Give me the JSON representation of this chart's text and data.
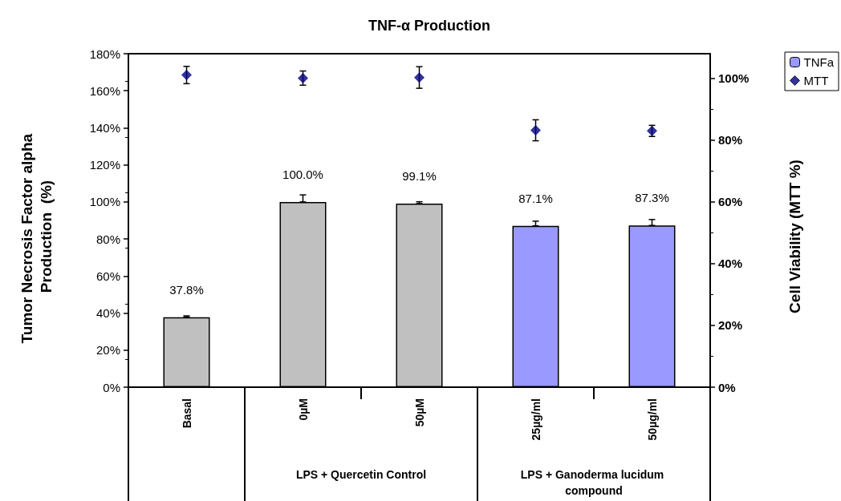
{
  "chart_data": {
    "type": "bar",
    "title": "TNF-α Production",
    "ylabel": "Tumor Necrosis Factor alpha Production  (%)",
    "y2label": "Cell Viability (MTT %)",
    "categories": [
      "Basal",
      "0µM",
      "50µM",
      "25µg/ml",
      "50µg/ml"
    ],
    "series": [
      {
        "name": "TNFa",
        "color": "#9999ff",
        "colors": [
          "#c0c0c0",
          "#c0c0c0",
          "#c0c0c0",
          "#9999ff",
          "#9999ff"
        ],
        "values": [
          37.8,
          100.0,
          99.1,
          87.1,
          87.3
        ],
        "value_labels": [
          "37.8%",
          "100.0%",
          "99.1%",
          "87.1%",
          "87.3%"
        ],
        "errors": [
          [
            37.8,
            38.5
          ],
          [
            100.0,
            103.8
          ],
          [
            99.1,
            100.1
          ],
          [
            87.1,
            89.6
          ],
          [
            87.3,
            90.5
          ]
        ]
      },
      {
        "name": "MTT",
        "type": "scatter",
        "axis": "y2",
        "marker": "diamond",
        "color": "#000080",
        "x": [
          "Basal",
          "0µM",
          "50µM",
          "25µg/ml",
          "50µg/ml"
        ],
        "values": [
          101.1,
          100.1,
          100.3,
          83.2,
          83.0
        ],
        "errors": [
          2.8,
          2.3,
          3.5,
          3.4,
          1.8
        ]
      }
    ],
    "ylim": [
      0,
      180
    ],
    "yticks": [
      {
        "value": 0,
        "label": "0%"
      },
      {
        "value": 20,
        "label": "20%"
      },
      {
        "value": 40,
        "label": "40%"
      },
      {
        "value": 60,
        "label": "60%"
      },
      {
        "value": 80,
        "label": "80%"
      },
      {
        "value": 100,
        "label": "100%"
      },
      {
        "value": 120,
        "label": "120%"
      },
      {
        "value": 140,
        "label": "140%"
      },
      {
        "value": 160,
        "label": "160%"
      },
      {
        "value": 180,
        "label": "180%"
      }
    ],
    "y2lim": [
      0,
      108
    ],
    "y2ticks": [
      {
        "value": 0,
        "label": "0%"
      },
      {
        "value": 20,
        "label": "20%"
      },
      {
        "value": 40,
        "label": "40%"
      },
      {
        "value": 60,
        "label": "60%"
      },
      {
        "value": 80,
        "label": "80%"
      },
      {
        "value": 100,
        "label": "100%"
      }
    ],
    "annotations": [
      "LPS + Quercetin Control",
      "LPS + Ganoderma lucidum compound"
    ],
    "grid": false,
    "legend": "top right"
  }
}
